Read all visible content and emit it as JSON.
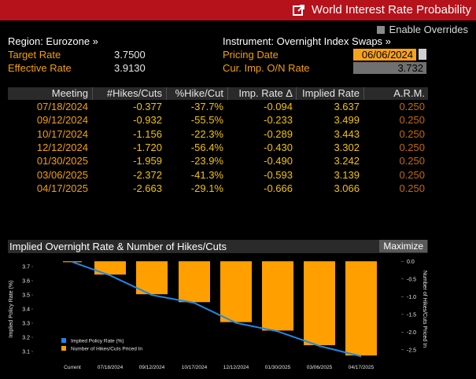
{
  "header": {
    "title": "World Interest Rate Probability",
    "icon": "external-link-icon",
    "enable_overrides": "Enable Overrides"
  },
  "left": {
    "region": "Region: Eurozone »",
    "target_label": "Target Rate",
    "target_value": "3.7500",
    "effective_label": "Effective Rate",
    "effective_value": "3.9130"
  },
  "right": {
    "instrument": "Instrument: Overnight Index Swaps »",
    "pricing_label": "Pricing Date",
    "pricing_value": "06/06/2024",
    "curimp_label": "Cur. Imp. O/N Rate",
    "curimp_value": "3.732"
  },
  "table": {
    "headers": [
      "Meeting",
      "#Hikes/Cuts",
      "%Hike/Cut",
      "Imp. Rate Δ",
      "Implied Rate",
      "A.R.M."
    ],
    "rows": [
      [
        "07/18/2024",
        "-0.377",
        "-37.7%",
        "-0.094",
        "3.637",
        "0.250"
      ],
      [
        "09/12/2024",
        "-0.932",
        "-55.5%",
        "-0.233",
        "3.499",
        "0.250"
      ],
      [
        "10/17/2024",
        "-1.156",
        "-22.3%",
        "-0.289",
        "3.443",
        "0.250"
      ],
      [
        "12/12/2024",
        "-1.720",
        "-56.4%",
        "-0.430",
        "3.302",
        "0.250"
      ],
      [
        "01/30/2025",
        "-1.959",
        "-23.9%",
        "-0.490",
        "3.242",
        "0.250"
      ],
      [
        "03/06/2025",
        "-2.372",
        "-41.3%",
        "-0.593",
        "3.139",
        "0.250"
      ],
      [
        "04/17/2025",
        "-2.663",
        "-29.1%",
        "-0.666",
        "3.066",
        "0.250"
      ]
    ]
  },
  "panel": {
    "title": "Implied Overnight Rate & Number of Hikes/Cuts",
    "maximize": "Maximize"
  },
  "colors": {
    "accent": "#f5a000",
    "title_bar": "#b5121b",
    "line": "#1e88e5",
    "bars": "#ff9f00"
  },
  "chart_data": {
    "type": "bar",
    "categories": [
      "Current",
      "07/18/2024",
      "09/12/2024",
      "10/17/2024",
      "12/12/2024",
      "01/30/2025",
      "03/06/2025",
      "04/17/2025"
    ],
    "series": [
      {
        "name": "Implied Policy Rate (%)",
        "type": "line",
        "axis": "left",
        "values": [
          3.732,
          3.637,
          3.499,
          3.443,
          3.302,
          3.242,
          3.139,
          3.066
        ]
      },
      {
        "name": "Number of Hikes/Cuts Priced In",
        "type": "bar",
        "axis": "right",
        "values": [
          0,
          -0.377,
          -0.932,
          -1.156,
          -1.72,
          -1.959,
          -2.372,
          -2.663
        ]
      }
    ],
    "ylabel": "Implied Policy Rate (%)",
    "y2label": "Number of Hikes/Cuts Priced In",
    "yticks": [
      "3.1",
      "3.2",
      "3.3",
      "3.4",
      "3.5",
      "3.6",
      "3.7"
    ],
    "y2ticks": [
      "0.0",
      "-0.5",
      "-1.0",
      "-1.5",
      "-2.0",
      "-2.5"
    ],
    "ylim": [
      3.05,
      3.75
    ],
    "y2lim": [
      -2.75,
      0.05
    ],
    "legend": "bottom-left"
  }
}
